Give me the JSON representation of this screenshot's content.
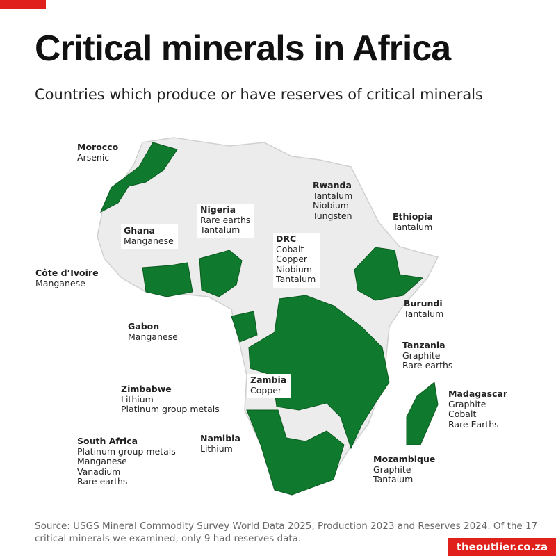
{
  "header": {
    "title": "Critical minerals in Africa",
    "subtitle": "Countries which produce or have reserves of critical minerals"
  },
  "labels": [
    {
      "country": "Morocco",
      "minerals": [
        "Arsenic"
      ]
    },
    {
      "country": "Rwanda",
      "minerals": [
        "Tantalum",
        "Niobium",
        "Tungsten"
      ]
    },
    {
      "country": "Nigeria",
      "minerals": [
        "Rare earths",
        "Tantalum"
      ]
    },
    {
      "country": "Ethiopia",
      "minerals": [
        "Tantalum"
      ]
    },
    {
      "country": "Ghana",
      "minerals": [
        "Manganese"
      ]
    },
    {
      "country": "DRC",
      "minerals": [
        "Cobalt",
        "Copper",
        "Niobium",
        "Tantalum"
      ]
    },
    {
      "country": "Côte d’Ivoire",
      "minerals": [
        "Manganese"
      ]
    },
    {
      "country": "Burundi",
      "minerals": [
        "Tantalum"
      ]
    },
    {
      "country": "Gabon",
      "minerals": [
        "Manganese"
      ]
    },
    {
      "country": "Tanzania",
      "minerals": [
        "Graphite",
        "Rare earths"
      ]
    },
    {
      "country": "Zambia",
      "minerals": [
        "Copper"
      ]
    },
    {
      "country": "Madagascar",
      "minerals": [
        "Graphite",
        "Cobalt",
        "Rare Earths"
      ]
    },
    {
      "country": "Zimbabwe",
      "minerals": [
        "Lithium",
        "Platinum group metals"
      ]
    },
    {
      "country": "Namibia",
      "minerals": [
        "Lithium"
      ]
    },
    {
      "country": "South Africa",
      "minerals": [
        "Platinum group metals",
        "Manganese",
        "Vanadium",
        "Rare earths"
      ]
    },
    {
      "country": "Mozambique",
      "minerals": [
        "Graphite",
        "Tantalum"
      ]
    }
  ],
  "footer": {
    "source": "Source: USGS Mineral Commodity Survey World Data 2025, Production 2023 and Reserves 2024. Of the 17 critical minerals we examined, only 9 had reserves data.",
    "brand": "theoutlier.co.za"
  }
}
